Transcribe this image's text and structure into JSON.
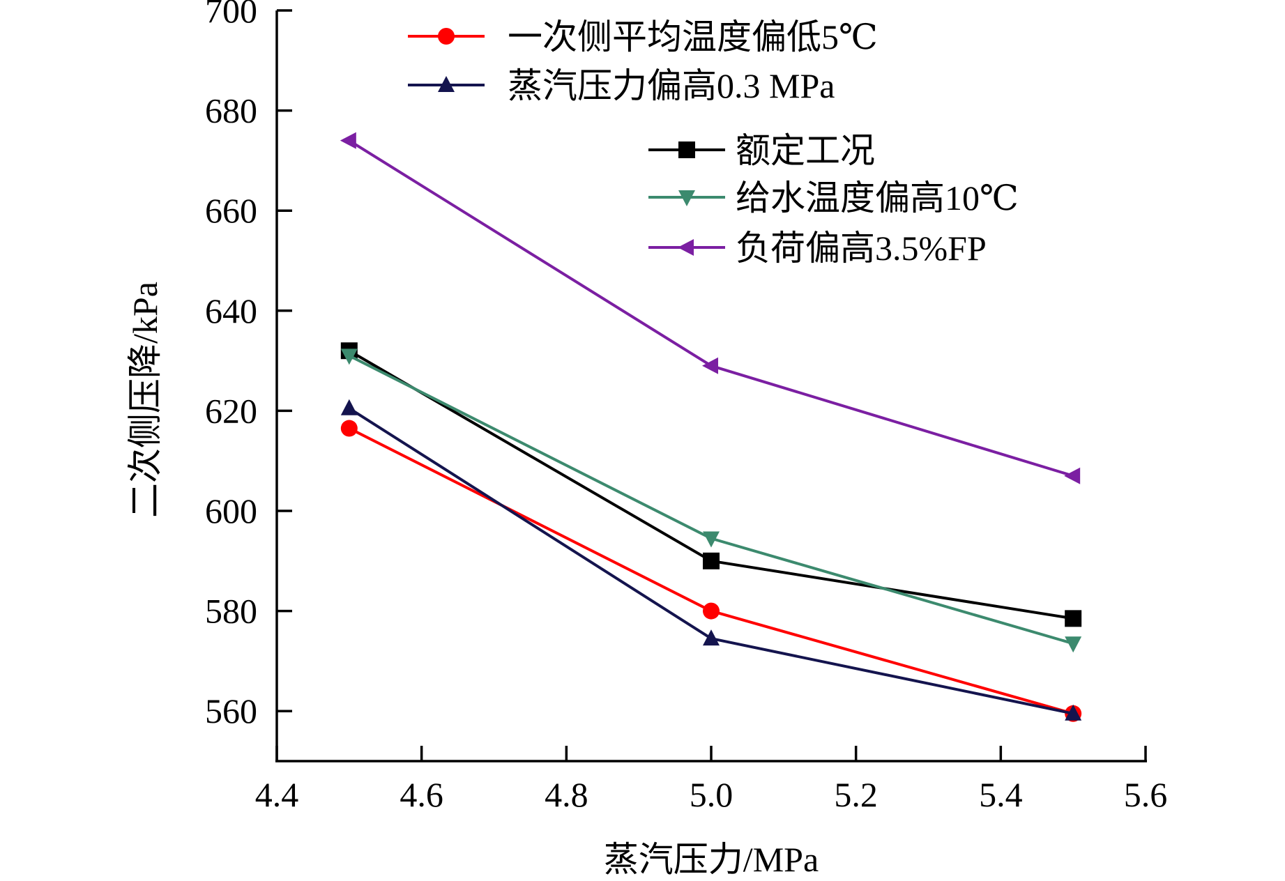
{
  "chart_data": {
    "type": "line",
    "title": "",
    "xlabel": "蒸汽压力/MPa",
    "ylabel": "二次侧压降/kPa",
    "xlim": [
      4.4,
      5.6
    ],
    "ylim": [
      550,
      700
    ],
    "xticks": [
      "4.4",
      "4.6",
      "4.8",
      "5.0",
      "5.2",
      "5.4",
      "5.6"
    ],
    "yticks": [
      "560",
      "580",
      "600",
      "620",
      "640",
      "660",
      "680",
      "700"
    ],
    "x": [
      4.5,
      5.0,
      5.5
    ],
    "legend_position": "top-right",
    "series": [
      {
        "name": "一次侧平均温度偏低5℃",
        "values": [
          616.5,
          580,
          559.5
        ],
        "color": "#ff0000",
        "marker": "circle"
      },
      {
        "name": "蒸汽压力偏高0.3 MPa",
        "values": [
          620.5,
          574.5,
          559.5
        ],
        "color": "#14144e",
        "marker": "triangle-up"
      },
      {
        "name": "额定工况",
        "values": [
          632,
          590,
          578.5
        ],
        "color": "#000000",
        "marker": "square"
      },
      {
        "name": "给水温度偏高10℃",
        "values": [
          631,
          594.5,
          573.5
        ],
        "color": "#3c8a6e",
        "marker": "triangle-down"
      },
      {
        "name": "负荷偏高3.5%FP",
        "values": [
          674,
          629,
          607
        ],
        "color": "#7b1fa2",
        "marker": "triangle-left"
      }
    ]
  }
}
